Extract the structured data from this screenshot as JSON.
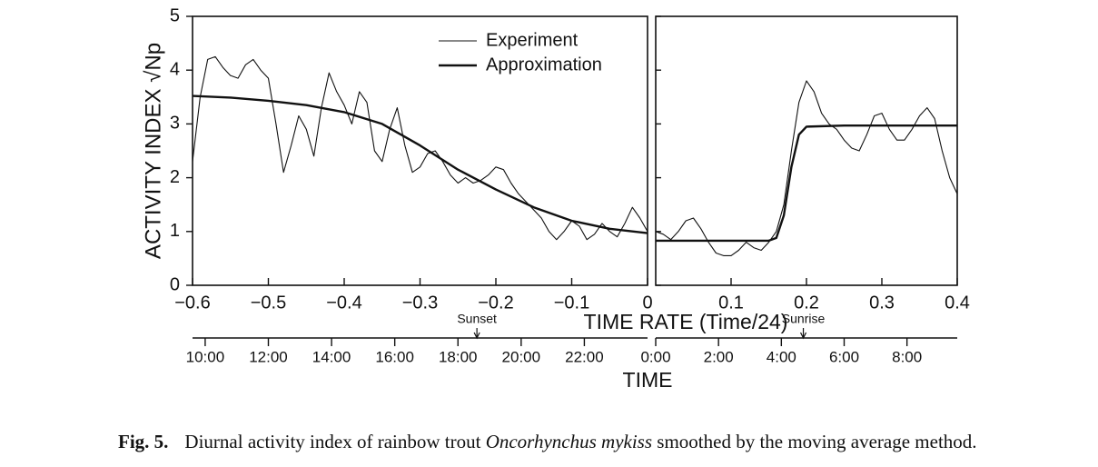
{
  "chart_data": [
    {
      "type": "line",
      "ylabel": "ACTIVITY INDEX √Np",
      "xlabel": "TIME RATE (Time/24)",
      "x2label": "TIME",
      "xlim": [
        -0.6,
        0
      ],
      "ylim": [
        0,
        5
      ],
      "xticks": [
        {
          "value": -0.6,
          "label": "−0.6"
        },
        {
          "value": -0.5,
          "label": "−0.5"
        },
        {
          "value": -0.4,
          "label": "−0.4"
        },
        {
          "value": -0.3,
          "label": "−0.3"
        },
        {
          "value": -0.2,
          "label": "−0.2"
        },
        {
          "value": -0.1,
          "label": "−0.1"
        },
        0
      ],
      "yticks": [
        0,
        1,
        2,
        3,
        4,
        5
      ],
      "show_ytick_labels": true,
      "x2lim": [
        -14.4,
        0
      ],
      "x2ticks": [
        {
          "value": -14,
          "label": "10:00"
        },
        {
          "value": -12,
          "label": "12:00"
        },
        {
          "value": -10,
          "label": "14:00"
        },
        {
          "value": -8,
          "label": "16:00"
        },
        {
          "value": -6,
          "label": "18:00"
        },
        {
          "value": -4,
          "label": "20:00"
        },
        {
          "value": -2,
          "label": "22:00"
        }
      ],
      "annotations": [
        {
          "text": "Sunset",
          "x2": -5.4
        }
      ],
      "legend": "upper right",
      "series": [
        {
          "name": "Experiment",
          "color": "#111111",
          "width": 1.1,
          "x": [
            -0.6,
            -0.59,
            -0.58,
            -0.57,
            -0.56,
            -0.55,
            -0.54,
            -0.53,
            -0.52,
            -0.51,
            -0.5,
            -0.49,
            -0.48,
            -0.47,
            -0.46,
            -0.45,
            -0.44,
            -0.43,
            -0.42,
            -0.41,
            -0.4,
            -0.39,
            -0.38,
            -0.37,
            -0.36,
            -0.35,
            -0.34,
            -0.33,
            -0.32,
            -0.31,
            -0.3,
            -0.29,
            -0.28,
            -0.27,
            -0.26,
            -0.25,
            -0.24,
            -0.23,
            -0.22,
            -0.21,
            -0.2,
            -0.19,
            -0.18,
            -0.17,
            -0.16,
            -0.15,
            -0.14,
            -0.13,
            -0.12,
            -0.11,
            -0.1,
            -0.09,
            -0.08,
            -0.07,
            -0.06,
            -0.05,
            -0.04,
            -0.03,
            -0.02,
            -0.01,
            0
          ],
          "values": [
            2.3,
            3.5,
            4.2,
            4.25,
            4.05,
            3.9,
            3.85,
            4.1,
            4.2,
            4.0,
            3.85,
            3.0,
            2.1,
            2.6,
            3.15,
            2.9,
            2.4,
            3.3,
            3.95,
            3.6,
            3.35,
            3.0,
            3.6,
            3.4,
            2.5,
            2.3,
            2.9,
            3.3,
            2.6,
            2.1,
            2.2,
            2.45,
            2.5,
            2.3,
            2.05,
            1.9,
            2.0,
            1.9,
            1.95,
            2.05,
            2.2,
            2.15,
            1.9,
            1.7,
            1.55,
            1.4,
            1.25,
            1.0,
            0.85,
            1.0,
            1.2,
            1.1,
            0.85,
            0.95,
            1.15,
            1.0,
            0.9,
            1.15,
            1.45,
            1.25,
            1.0
          ]
        },
        {
          "name": "Approximation",
          "color": "#111111",
          "width": 2.4,
          "x": [
            -0.6,
            -0.55,
            -0.5,
            -0.45,
            -0.4,
            -0.35,
            -0.3,
            -0.25,
            -0.2,
            -0.15,
            -0.1,
            -0.05,
            0
          ],
          "values": [
            3.52,
            3.49,
            3.43,
            3.35,
            3.22,
            3.0,
            2.6,
            2.15,
            1.78,
            1.45,
            1.2,
            1.05,
            0.97
          ]
        }
      ]
    },
    {
      "type": "line",
      "xlim": [
        0,
        0.4
      ],
      "ylim": [
        0,
        5
      ],
      "xticks": [
        0.1,
        0.2,
        0.3,
        0.4
      ],
      "yticks": [
        0,
        1,
        2,
        3,
        4,
        5
      ],
      "show_ytick_labels": false,
      "x2lim": [
        0,
        9.6
      ],
      "x2ticks": [
        {
          "value": 0,
          "label": "0:00"
        },
        {
          "value": 2,
          "label": "2:00"
        },
        {
          "value": 4,
          "label": "4:00"
        },
        {
          "value": 6,
          "label": "6:00"
        },
        {
          "value": 8,
          "label": "8:00"
        }
      ],
      "annotations": [
        {
          "text": "Sunrise",
          "x2": 4.7
        }
      ],
      "series": [
        {
          "color": "#111111",
          "width": 1.1,
          "x": [
            0,
            0.01,
            0.02,
            0.03,
            0.04,
            0.05,
            0.06,
            0.07,
            0.08,
            0.09,
            0.1,
            0.11,
            0.12,
            0.13,
            0.14,
            0.15,
            0.16,
            0.17,
            0.18,
            0.19,
            0.2,
            0.21,
            0.22,
            0.23,
            0.24,
            0.25,
            0.26,
            0.27,
            0.28,
            0.29,
            0.3,
            0.31,
            0.32,
            0.33,
            0.34,
            0.35,
            0.36,
            0.37,
            0.38,
            0.39,
            0.4
          ],
          "values": [
            1.0,
            0.95,
            0.85,
            1.0,
            1.2,
            1.25,
            1.05,
            0.8,
            0.6,
            0.55,
            0.55,
            0.65,
            0.8,
            0.7,
            0.65,
            0.8,
            1.0,
            1.5,
            2.5,
            3.4,
            3.8,
            3.6,
            3.2,
            3.0,
            2.9,
            2.7,
            2.55,
            2.5,
            2.8,
            3.15,
            3.2,
            2.9,
            2.7,
            2.7,
            2.9,
            3.15,
            3.3,
            3.1,
            2.5,
            2.0,
            1.7
          ]
        },
        {
          "color": "#111111",
          "width": 2.4,
          "x": [
            0,
            0.15,
            0.16,
            0.17,
            0.18,
            0.19,
            0.2,
            0.25,
            0.4
          ],
          "values": [
            0.83,
            0.83,
            0.88,
            1.3,
            2.2,
            2.8,
            2.95,
            2.97,
            2.97
          ]
        }
      ]
    }
  ],
  "caption": {
    "label": "Fig. 5.",
    "text_before": "Diurnal activity index of rainbow trout ",
    "species": "Oncorhynchus mykiss",
    "text_after": " smoothed by the moving average method."
  }
}
